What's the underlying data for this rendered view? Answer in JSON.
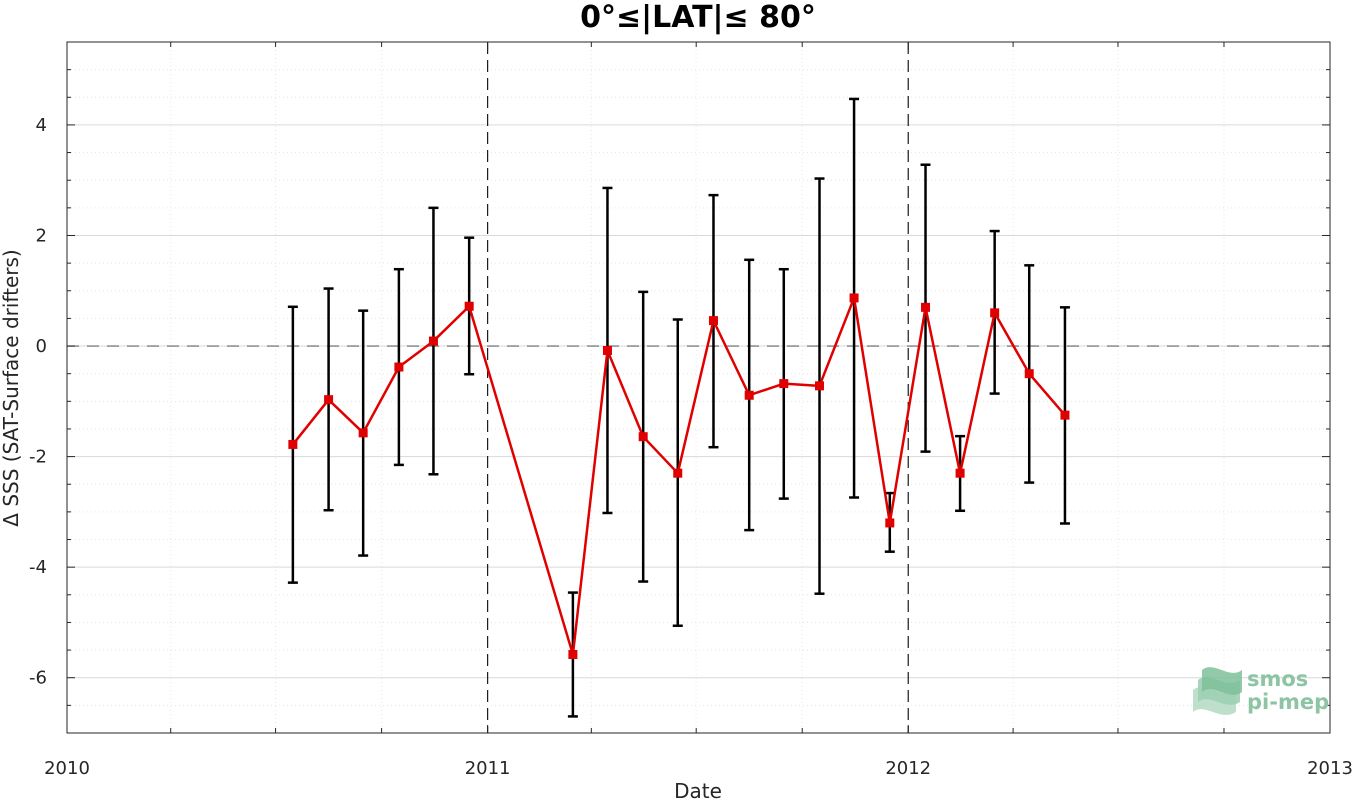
{
  "chart_data": {
    "type": "line",
    "title": "0°≤|LAT|≤ 80°",
    "xlabel": "Date",
    "ylabel": "Δ SSS (SAT-Surface drifters)",
    "xlim": [
      "2010-01-01",
      "2013-01-01"
    ],
    "ylim": [
      -7.0,
      5.5
    ],
    "x_ticks": [
      "2010",
      "2011",
      "2012",
      "2013"
    ],
    "y_ticks": [
      -6,
      -4,
      -2,
      0,
      2,
      4
    ],
    "y_tick_labels": [
      "-6",
      "-4",
      "-2",
      "0",
      "2",
      "4"
    ],
    "grid": true,
    "zero_line": 0,
    "year_lines": [
      "2011-01-01",
      "2012-01-01"
    ],
    "series": [
      {
        "color": "#e00000",
        "error_color": "#000000",
        "marker": "square",
        "x": [
          "2010-07-16",
          "2010-08-16",
          "2010-09-15",
          "2010-10-16",
          "2010-11-15",
          "2010-12-16",
          "2011-03-16",
          "2011-04-15",
          "2011-05-16",
          "2011-06-15",
          "2011-07-16",
          "2011-08-16",
          "2011-09-15",
          "2011-10-16",
          "2011-11-15",
          "2011-12-16",
          "2012-01-16",
          "2012-02-15",
          "2012-03-16",
          "2012-04-15",
          "2012-05-16"
        ],
        "y": [
          -1.78,
          -0.97,
          -1.57,
          -0.38,
          0.09,
          0.72,
          -5.58,
          -0.08,
          -1.64,
          -2.3,
          0.46,
          -0.89,
          -0.68,
          -0.72,
          0.87,
          -3.2,
          0.7,
          -2.3,
          0.6,
          -0.5,
          -1.25
        ],
        "err_low": [
          -4.28,
          -2.97,
          -3.79,
          -2.15,
          -2.32,
          -0.51,
          -6.7,
          -3.02,
          -4.26,
          -5.06,
          -1.83,
          -3.33,
          -2.76,
          -4.48,
          -2.74,
          -3.72,
          -1.91,
          -2.98,
          -0.86,
          -2.47,
          -3.21
        ],
        "err_high": [
          0.71,
          1.04,
          0.64,
          1.39,
          2.5,
          1.96,
          -4.46,
          2.86,
          0.98,
          0.48,
          2.73,
          1.56,
          1.39,
          3.03,
          4.47,
          -2.66,
          3.28,
          -1.63,
          2.08,
          1.46,
          0.7
        ]
      }
    ]
  },
  "logo": {
    "line1": "smos",
    "line2": "pi-mep"
  }
}
